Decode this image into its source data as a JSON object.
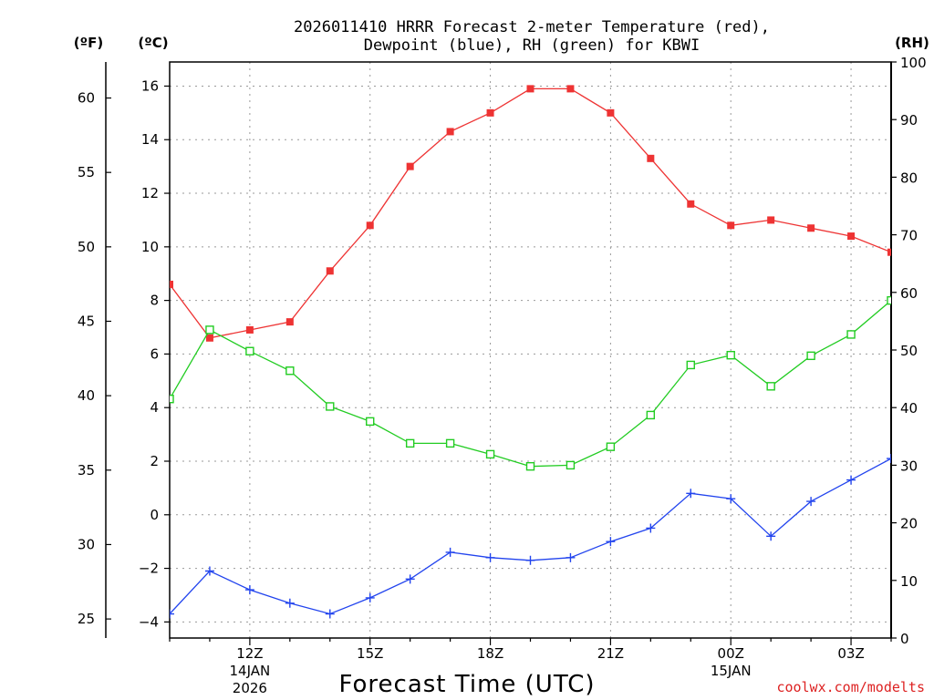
{
  "chart_data": {
    "type": "line",
    "title": "2026011410 HRRR Forecast 2-meter Temperature (red),",
    "subtitle": "Dewpoint (blue), RH (green) for KBWI",
    "xlabel": "Forecast Time (UTC)",
    "credit": "coolwx.com/modelts",
    "units": {
      "fahrenheit": "(ºF)",
      "celsius": "(ºC)",
      "rh": "(RH)"
    },
    "x_hours": [
      10,
      11,
      12,
      13,
      14,
      15,
      16,
      17,
      18,
      19,
      20,
      21,
      22,
      23,
      24,
      25,
      26,
      27,
      28
    ],
    "x_range": [
      10,
      28
    ],
    "x_ticks": [
      {
        "hour": 12,
        "label": "12Z",
        "line2": "14JAN",
        "line3": "2026"
      },
      {
        "hour": 15,
        "label": "15Z"
      },
      {
        "hour": 18,
        "label": "18Z"
      },
      {
        "hour": 21,
        "label": "21Z"
      },
      {
        "hour": 24,
        "label": "00Z",
        "line2": "15JAN"
      },
      {
        "hour": 27,
        "label": "03Z"
      }
    ],
    "celsius_axis": {
      "range": [
        -4.6,
        16.9
      ],
      "ticks": [
        -4,
        -2,
        0,
        2,
        4,
        6,
        8,
        10,
        12,
        14,
        16
      ],
      "labels": [
        "−4",
        "−2",
        "0",
        "2",
        "4",
        "6",
        "8",
        "10",
        "12",
        "14",
        "16"
      ]
    },
    "fahrenheit_axis": {
      "ticks": [
        25,
        30,
        35,
        40,
        45,
        50,
        55,
        60
      ],
      "labels": [
        "25",
        "30",
        "35",
        "40",
        "45",
        "50",
        "55",
        "60"
      ]
    },
    "rh_axis": {
      "range": [
        0,
        100
      ],
      "ticks": [
        0,
        10,
        20,
        30,
        40,
        50,
        60,
        70,
        80,
        90,
        100
      ],
      "labels": [
        "0",
        "10",
        "20",
        "30",
        "40",
        "50",
        "60",
        "70",
        "80",
        "90",
        "100"
      ]
    },
    "series": [
      {
        "name": "Temperature",
        "axis": "celsius",
        "color": "#ee3333",
        "marker": "filled-square",
        "values": [
          8.6,
          6.6,
          6.9,
          7.2,
          9.1,
          10.8,
          13.0,
          14.3,
          15.0,
          15.9,
          15.9,
          15.0,
          13.3,
          11.6,
          10.8,
          11.0,
          10.7,
          10.4,
          9.8
        ]
      },
      {
        "name": "Dewpoint",
        "axis": "celsius",
        "color": "#2244ee",
        "marker": "plus",
        "values": [
          -3.7,
          -2.1,
          -2.8,
          -3.3,
          -3.7,
          -3.1,
          -2.4,
          -1.4,
          -1.6,
          -1.7,
          -1.6,
          -1.0,
          -0.5,
          0.8,
          0.6,
          -0.8,
          0.5,
          1.3,
          2.1
        ]
      },
      {
        "name": "RH",
        "axis": "rh",
        "color": "#22cc22",
        "marker": "open-square",
        "values": [
          41.5,
          53.5,
          49.8,
          46.4,
          40.2,
          37.6,
          33.8,
          33.8,
          31.9,
          29.8,
          30.0,
          33.2,
          38.7,
          47.4,
          49.1,
          43.7,
          49.0,
          52.7,
          58.6
        ]
      }
    ]
  }
}
